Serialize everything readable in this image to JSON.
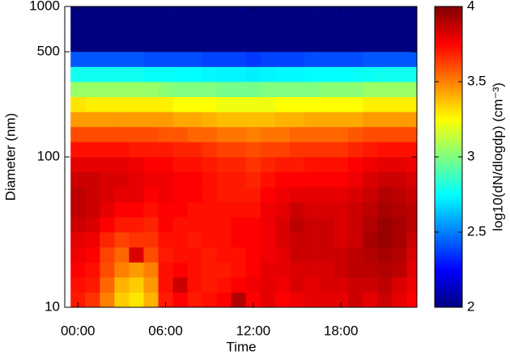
{
  "chart_data": {
    "type": "heatmap",
    "x_label": "Time",
    "y_label": "Diameter (nm)",
    "colorbar_label": "log10(dN/dlogdp) (cm⁻³)",
    "colormap": "jet",
    "y_log": true,
    "x": [
      0,
      1,
      2,
      3,
      4,
      5,
      6,
      7,
      8,
      9,
      10,
      11,
      12,
      13,
      14,
      15,
      16,
      17,
      18,
      19,
      20,
      21,
      22,
      23
    ],
    "xlim": [
      -0.9,
      23.2
    ],
    "xticks": [
      {
        "value": 0,
        "label": "00:00"
      },
      {
        "value": 6,
        "label": "06:00"
      },
      {
        "value": 12,
        "label": "12:00"
      },
      {
        "value": 18,
        "label": "18:00"
      }
    ],
    "y_edges": [
      10,
      12.59,
      15.85,
      19.95,
      25.12,
      31.62,
      39.81,
      50.12,
      63.1,
      79.43,
      100,
      125.9,
      158.5,
      199.5,
      251.2,
      316.2,
      398.1,
      501.2,
      631,
      794.3,
      1000
    ],
    "ylim": [
      10,
      1000
    ],
    "yticks": [
      10,
      100,
      500,
      1000
    ],
    "clim": [
      2,
      4
    ],
    "cticks": [
      2,
      2.5,
      3,
      3.5,
      4
    ],
    "z": [
      [
        3.7,
        3.65,
        3.5,
        3.35,
        3.3,
        3.4,
        3.7,
        3.75,
        3.7,
        3.72,
        3.75,
        3.9,
        3.75,
        3.8,
        3.75,
        3.78,
        3.8,
        3.8,
        3.8,
        3.85,
        3.8,
        3.85,
        3.8,
        3.75
      ],
      [
        3.72,
        3.7,
        3.55,
        3.4,
        3.35,
        3.45,
        3.72,
        3.85,
        3.72,
        3.7,
        3.72,
        3.75,
        3.78,
        3.8,
        3.78,
        3.82,
        3.8,
        3.82,
        3.82,
        3.85,
        3.85,
        3.88,
        3.82,
        3.78
      ],
      [
        3.75,
        3.72,
        3.6,
        3.5,
        3.45,
        3.5,
        3.72,
        3.75,
        3.72,
        3.7,
        3.7,
        3.72,
        3.75,
        3.8,
        3.8,
        3.82,
        3.82,
        3.82,
        3.85,
        3.88,
        3.88,
        3.9,
        3.88,
        3.8
      ],
      [
        3.78,
        3.75,
        3.62,
        3.55,
        3.82,
        3.6,
        3.7,
        3.72,
        3.72,
        3.7,
        3.72,
        3.72,
        3.75,
        3.78,
        3.8,
        3.85,
        3.85,
        3.85,
        3.85,
        3.88,
        3.9,
        3.92,
        3.9,
        3.82
      ],
      [
        3.8,
        3.78,
        3.68,
        3.62,
        3.65,
        3.65,
        3.72,
        3.72,
        3.7,
        3.72,
        3.72,
        3.75,
        3.75,
        3.78,
        3.82,
        3.85,
        3.85,
        3.85,
        3.82,
        3.85,
        3.92,
        3.95,
        3.92,
        3.85
      ],
      [
        3.85,
        3.82,
        3.75,
        3.7,
        3.7,
        3.68,
        3.75,
        3.72,
        3.72,
        3.72,
        3.72,
        3.75,
        3.75,
        3.78,
        3.82,
        3.88,
        3.85,
        3.85,
        3.82,
        3.85,
        3.9,
        3.95,
        3.92,
        3.88
      ],
      [
        3.88,
        3.85,
        3.8,
        3.75,
        3.75,
        3.72,
        3.75,
        3.75,
        3.72,
        3.72,
        3.72,
        3.72,
        3.72,
        3.78,
        3.8,
        3.85,
        3.82,
        3.82,
        3.82,
        3.85,
        3.88,
        3.92,
        3.9,
        3.88
      ],
      [
        3.88,
        3.85,
        3.82,
        3.8,
        3.8,
        3.75,
        3.78,
        3.75,
        3.75,
        3.72,
        3.7,
        3.7,
        3.7,
        3.75,
        3.78,
        3.8,
        3.8,
        3.8,
        3.8,
        3.82,
        3.85,
        3.9,
        3.88,
        3.85
      ],
      [
        3.85,
        3.85,
        3.82,
        3.82,
        3.8,
        3.78,
        3.78,
        3.75,
        3.75,
        3.72,
        3.7,
        3.7,
        3.68,
        3.72,
        3.75,
        3.75,
        3.75,
        3.75,
        3.75,
        3.78,
        3.82,
        3.85,
        3.85,
        3.82
      ],
      [
        3.8,
        3.8,
        3.8,
        3.8,
        3.78,
        3.75,
        3.75,
        3.72,
        3.72,
        3.7,
        3.68,
        3.68,
        3.65,
        3.68,
        3.7,
        3.7,
        3.72,
        3.72,
        3.72,
        3.75,
        3.78,
        3.8,
        3.8,
        3.78
      ],
      [
        3.72,
        3.72,
        3.72,
        3.72,
        3.7,
        3.7,
        3.7,
        3.68,
        3.68,
        3.65,
        3.62,
        3.62,
        3.6,
        3.62,
        3.62,
        3.65,
        3.65,
        3.65,
        3.65,
        3.68,
        3.7,
        3.72,
        3.72,
        3.72
      ],
      [
        3.6,
        3.6,
        3.6,
        3.6,
        3.6,
        3.6,
        3.58,
        3.58,
        3.55,
        3.55,
        3.52,
        3.52,
        3.5,
        3.52,
        3.52,
        3.55,
        3.55,
        3.55,
        3.55,
        3.58,
        3.6,
        3.6,
        3.6,
        3.6
      ],
      [
        3.45,
        3.45,
        3.45,
        3.45,
        3.45,
        3.45,
        3.45,
        3.42,
        3.42,
        3.4,
        3.38,
        3.38,
        3.38,
        3.38,
        3.4,
        3.4,
        3.42,
        3.42,
        3.42,
        3.42,
        3.45,
        3.45,
        3.45,
        3.45
      ],
      [
        3.3,
        3.28,
        3.28,
        3.28,
        3.28,
        3.28,
        3.28,
        3.25,
        3.25,
        3.25,
        3.22,
        3.22,
        3.22,
        3.22,
        3.25,
        3.25,
        3.25,
        3.25,
        3.25,
        3.25,
        3.28,
        3.28,
        3.28,
        3.28
      ],
      [
        3.05,
        3.05,
        3.05,
        3.05,
        3.05,
        3.05,
        3.02,
        3.0,
        3.0,
        3.0,
        2.98,
        2.98,
        2.98,
        3.0,
        3.0,
        3.0,
        3.0,
        3.02,
        3.02,
        3.02,
        3.05,
        3.05,
        3.05,
        3.05
      ],
      [
        2.78,
        2.78,
        2.78,
        2.78,
        2.78,
        2.76,
        2.76,
        2.75,
        2.75,
        2.74,
        2.73,
        2.73,
        2.72,
        2.73,
        2.74,
        2.74,
        2.75,
        2.75,
        2.75,
        2.76,
        2.77,
        2.78,
        2.78,
        2.78
      ],
      [
        2.42,
        2.42,
        2.42,
        2.42,
        2.42,
        2.4,
        2.4,
        2.4,
        2.4,
        2.38,
        2.38,
        2.38,
        2.36,
        2.38,
        2.38,
        2.38,
        2.4,
        2.4,
        2.4,
        2.4,
        2.42,
        2.42,
        2.42,
        2.42
      ],
      [
        2,
        2,
        2,
        2,
        2,
        2,
        2,
        2,
        2,
        2,
        2,
        2,
        2,
        2,
        2,
        2,
        2,
        2,
        2,
        2,
        2,
        2,
        2,
        2
      ],
      [
        2,
        2,
        2,
        2,
        2,
        2,
        2,
        2,
        2,
        2,
        2,
        2,
        2,
        2,
        2,
        2,
        2,
        2,
        2,
        2,
        2,
        2,
        2,
        2
      ],
      [
        2,
        2,
        2,
        2,
        2,
        2,
        2,
        2,
        2,
        2,
        2,
        2,
        2,
        2,
        2,
        2,
        2,
        2,
        2,
        2,
        2,
        2,
        2,
        2
      ]
    ]
  }
}
